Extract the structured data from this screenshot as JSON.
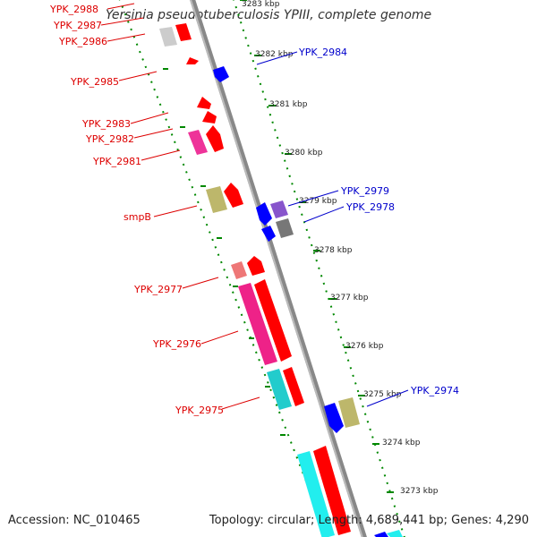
{
  "title": "Yersinia pseudotuberculosis YPIII, complete genome",
  "footer": {
    "accession": "Accession: NC_010465",
    "summary": "Topology: circular; Length: 4,689,441 bp; Genes: 4,290"
  },
  "ticks": [
    "3283 kbp",
    "3282 kbp",
    "3281 kbp",
    "3280 kbp",
    "3279 kbp",
    "3278 kbp",
    "3277 kbp",
    "3276 kbp",
    "3275 kbp",
    "3274 kbp",
    "3273 kbp"
  ],
  "genes_left": [
    "YPK_2988",
    "YPK_2987",
    "YPK_2986",
    "YPK_2985",
    "YPK_2983",
    "YPK_2982",
    "YPK_2981",
    "smpB",
    "YPK_2977",
    "YPK_2976",
    "YPK_2975"
  ],
  "genes_right": [
    "YPK_2984",
    "YPK_2979",
    "YPK_2978",
    "YPK_2974"
  ],
  "colors": {
    "forward_arrow": "#ff0000",
    "reverse_arrow": "#0000ff",
    "label_forward": "#dd0000",
    "label_reverse": "#0000cc",
    "tick_green": "#008800"
  }
}
